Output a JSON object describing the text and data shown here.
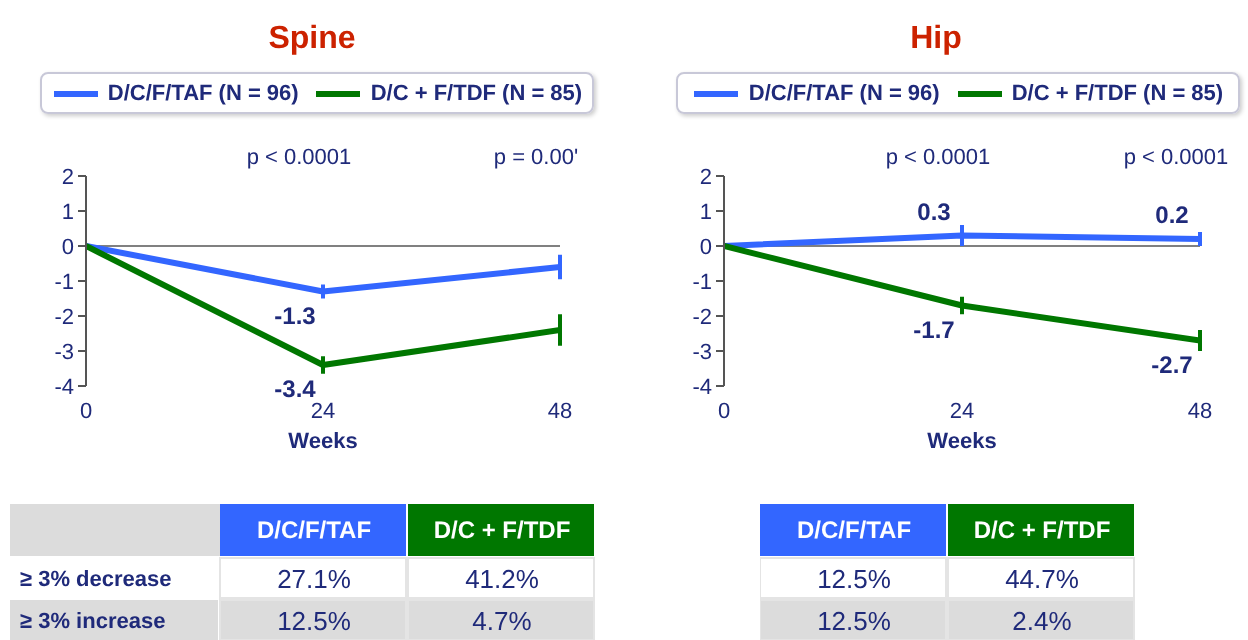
{
  "chart_data": [
    {
      "type": "line",
      "title": "Spine",
      "xlabel": "Weeks",
      "x": [
        0,
        24,
        48
      ],
      "xlim": [
        0,
        48
      ],
      "xticks": [
        0,
        24,
        48
      ],
      "ylim": [
        -4,
        2
      ],
      "yticks": [
        -4,
        -3,
        -2,
        -1,
        0,
        1,
        2
      ],
      "legend": "top",
      "marker": "none",
      "line_style": "solid",
      "series": [
        {
          "name": "D/C/F/TAF (N = 96)",
          "color": "#3366ff",
          "values": [
            0,
            -1.3,
            -0.6
          ],
          "errors": [
            null,
            0.2,
            0.35
          ],
          "value_labels": [
            null,
            "-1.3",
            null
          ]
        },
        {
          "name": "D/C + F/TDF (N = 85)",
          "color": "#007700",
          "values": [
            0,
            -3.4,
            -2.4
          ],
          "errors": [
            null,
            0.25,
            0.45
          ],
          "value_labels": [
            null,
            "-3.4",
            null
          ]
        }
      ],
      "ref_lines": [
        {
          "axis": "y",
          "value": 0,
          "color": "#808080"
        }
      ],
      "annotations": [
        "p < 0.0001",
        "p = 0.00'"
      ]
    },
    {
      "type": "line",
      "title": "Hip",
      "xlabel": "Weeks",
      "x": [
        0,
        24,
        48
      ],
      "xlim": [
        0,
        48
      ],
      "xticks": [
        0,
        24,
        48
      ],
      "ylim": [
        -4,
        2
      ],
      "yticks": [
        -4,
        -3,
        -2,
        -1,
        0,
        1,
        2
      ],
      "legend": "top",
      "marker": "none",
      "line_style": "solid",
      "series": [
        {
          "name": "D/C/F/TAF (N = 96)",
          "color": "#3366ff",
          "values": [
            0,
            0.3,
            0.2
          ],
          "errors": [
            null,
            0.3,
            0.2
          ],
          "value_labels": [
            null,
            "0.3",
            "0.2"
          ]
        },
        {
          "name": "D/C + F/TDF (N = 85)",
          "color": "#007700",
          "values": [
            0,
            -1.7,
            -2.7
          ],
          "errors": [
            null,
            0.25,
            0.3
          ],
          "value_labels": [
            null,
            "-1.7",
            "-2.7"
          ]
        }
      ],
      "ref_lines": [
        {
          "axis": "y",
          "value": 0,
          "color": "#808080"
        }
      ],
      "annotations": [
        "p < 0.0001",
        "p < 0.0001"
      ]
    },
    {
      "type": "heatmap",
      "categories": [
        "D/C/F/TAF",
        "D/C + F/TDF"
      ],
      "y_categories": [
        "≥ 3% decrease",
        "≥ 3% increase"
      ],
      "cells": [
        [
          27.1,
          41.2
        ],
        [
          12.5,
          4.7
        ]
      ],
      "cell_labels": [
        [
          "27.1%",
          "41.2%"
        ],
        [
          "12.5%",
          "4.7%"
        ]
      ]
    },
    {
      "type": "heatmap",
      "categories": [
        "D/C/F/TAF",
        "D/C + F/TDF"
      ],
      "y_categories": [
        null,
        null
      ],
      "cells": [
        [
          12.5,
          44.7
        ],
        [
          12.5,
          2.4
        ]
      ],
      "cell_labels": [
        [
          "12.5%",
          "44.7%"
        ],
        [
          "12.5%",
          "2.4%"
        ]
      ]
    }
  ]
}
